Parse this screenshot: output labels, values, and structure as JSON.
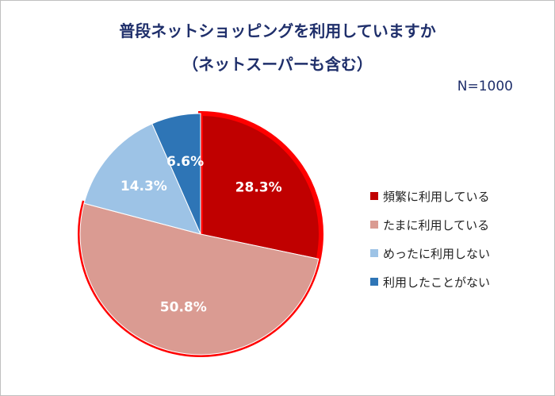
{
  "chart_data": {
    "type": "pie",
    "title": "普段ネットショッピングを利用していますか",
    "subtitle": "（ネットスーパーも含む）",
    "note": "N=1000",
    "categories": [
      "頻繁に利用している",
      "たまに利用している",
      "めったに利用しない",
      "利用したことがない"
    ],
    "values": [
      28.3,
      50.8,
      14.3,
      6.6
    ],
    "labels": [
      "28.3%",
      "50.8%",
      "14.3%",
      "6.6%"
    ],
    "colors": [
      "#C00000",
      "#DA9B92",
      "#9DC3E6",
      "#2E75B6"
    ],
    "highlight_color": "#FF0000",
    "highlighted": [
      "頻繁に利用している",
      "たまに利用している"
    ],
    "legend_position": "right"
  }
}
